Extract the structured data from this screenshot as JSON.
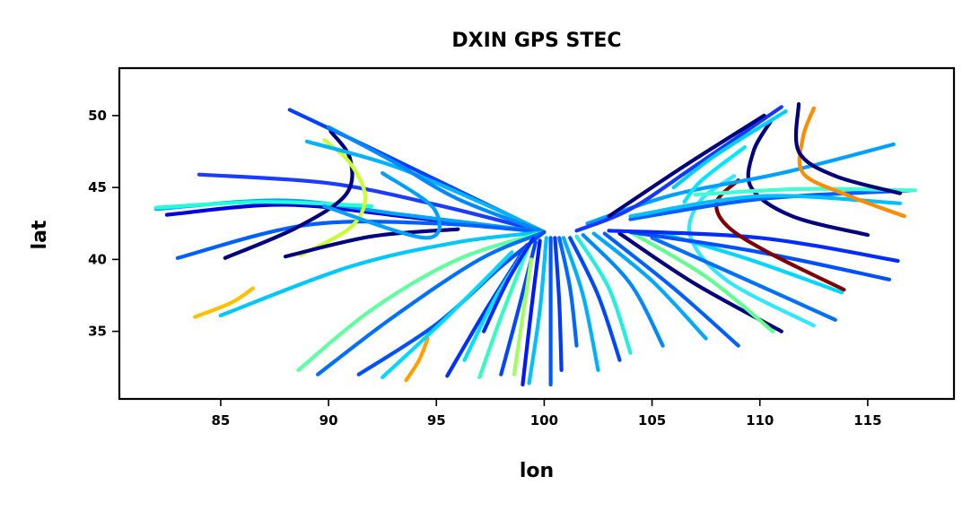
{
  "chart_data": {
    "type": "scatter",
    "title": "DXIN GPS STEC",
    "xlabel": "lon",
    "ylabel": "lat",
    "xlim": [
      80.3,
      119.0
    ],
    "ylim": [
      30.3,
      53.3
    ],
    "xticks": [
      85,
      90,
      95,
      100,
      105,
      110,
      115
    ],
    "yticks": [
      35,
      40,
      45,
      50
    ],
    "grid": false,
    "legend": "none",
    "colormap": "jet",
    "series": [
      {
        "color": "#0000e0",
        "points": [
          [
            82.5,
            43.1
          ],
          [
            88,
            43.8
          ],
          [
            94,
            42.9
          ],
          [
            100,
            41.9
          ]
        ]
      },
      {
        "color": "#1a3cff",
        "points": [
          [
            84,
            45.9
          ],
          [
            90,
            45.3
          ],
          [
            95,
            43.8
          ],
          [
            100,
            41.9
          ]
        ]
      },
      {
        "color": "#00a4ff",
        "points": [
          [
            82,
            43.5
          ],
          [
            88,
            44.1
          ],
          [
            93.5,
            43.1
          ],
          [
            100,
            41.9
          ]
        ]
      },
      {
        "color": "#22ffd5",
        "points": [
          [
            82,
            43.6
          ],
          [
            87,
            44.0
          ],
          [
            92,
            43.7
          ]
        ]
      },
      {
        "color": "#0060ff",
        "points": [
          [
            83,
            40.1
          ],
          [
            89,
            42.4
          ],
          [
            95,
            42.5
          ],
          [
            100,
            41.9
          ]
        ]
      },
      {
        "color": "#00c8ff",
        "points": [
          [
            85,
            36.1
          ],
          [
            91,
            39.5
          ],
          [
            96,
            41.2
          ],
          [
            100,
            41.9
          ]
        ]
      },
      {
        "color": "#ffc000",
        "points": [
          [
            83.8,
            36.0
          ],
          [
            85.5,
            37.0
          ],
          [
            86.5,
            38.0
          ]
        ]
      },
      {
        "color": "#000080",
        "points": [
          [
            85.2,
            40.1
          ],
          [
            88.5,
            42.2
          ],
          [
            90.8,
            44.5
          ],
          [
            91.0,
            47.0
          ],
          [
            90.1,
            48.9
          ]
        ]
      },
      {
        "color": "#c8ff30",
        "points": [
          [
            88.7,
            40.3
          ],
          [
            91.0,
            42.2
          ],
          [
            91.7,
            44.3
          ],
          [
            91.0,
            46.7
          ],
          [
            89.8,
            48.3
          ]
        ]
      },
      {
        "color": "#000080",
        "points": [
          [
            88,
            40.2
          ],
          [
            92,
            41.6
          ],
          [
            96,
            42.1
          ]
        ]
      },
      {
        "color": "#0040ff",
        "points": [
          [
            88.2,
            50.4
          ],
          [
            92,
            47.7
          ],
          [
            96,
            44.8
          ],
          [
            100,
            41.9
          ]
        ]
      },
      {
        "color": "#00b4ff",
        "points": [
          [
            89,
            48.2
          ],
          [
            93,
            46.5
          ],
          [
            97,
            44.0
          ],
          [
            100,
            41.9
          ]
        ]
      },
      {
        "color": "#0088ff",
        "points": [
          [
            90,
            49.2
          ],
          [
            93,
            46.8
          ],
          [
            96,
            44.2
          ],
          [
            100,
            41.9
          ]
        ]
      },
      {
        "color": "#60ffa0",
        "points": [
          [
            88.6,
            32.3
          ],
          [
            92,
            36.5
          ],
          [
            96,
            40.0
          ],
          [
            100,
            41.9
          ]
        ]
      },
      {
        "color": "#0070ff",
        "points": [
          [
            89.5,
            32.0
          ],
          [
            93,
            36.0
          ],
          [
            97,
            40.0
          ],
          [
            100,
            41.9
          ]
        ]
      },
      {
        "color": "#0050ff",
        "points": [
          [
            91.4,
            32.0
          ],
          [
            95,
            35.5
          ],
          [
            98,
            39.5
          ],
          [
            100,
            41.9
          ]
        ]
      },
      {
        "color": "#ffa000",
        "points": [
          [
            93.6,
            31.6
          ],
          [
            94.2,
            33.0
          ],
          [
            94.6,
            34.5
          ]
        ]
      },
      {
        "color": "#00d8ff",
        "points": [
          [
            92.5,
            31.8
          ],
          [
            95.5,
            36.0
          ],
          [
            98.5,
            40.5
          ]
        ]
      },
      {
        "color": "#00a0ff",
        "points": [
          [
            89.8,
            43.7
          ],
          [
            94.5,
            41.5
          ],
          [
            94.9,
            43.5
          ],
          [
            92.5,
            46.0
          ]
        ]
      },
      {
        "color": "#0030ff",
        "points": [
          [
            95.5,
            31.9
          ],
          [
            97.3,
            36.5
          ],
          [
            99.2,
            41.0
          ]
        ]
      },
      {
        "color": "#30ffc0",
        "points": [
          [
            97.0,
            31.8
          ],
          [
            98.0,
            36.0
          ],
          [
            99.3,
            41.0
          ]
        ]
      },
      {
        "color": "#00e0ff",
        "points": [
          [
            96.3,
            33.0
          ],
          [
            97.8,
            37.5
          ],
          [
            99.5,
            41.5
          ]
        ]
      },
      {
        "color": "#0028ff",
        "points": [
          [
            97.2,
            35.0
          ],
          [
            98.3,
            38.5
          ],
          [
            99.5,
            41.5
          ]
        ]
      },
      {
        "color": "#0048ff",
        "points": [
          [
            98.0,
            32.0
          ],
          [
            98.8,
            36.5
          ],
          [
            99.6,
            41.2
          ]
        ]
      },
      {
        "color": "#a0ff60",
        "points": [
          [
            98.6,
            32.0
          ],
          [
            99.0,
            36.0
          ],
          [
            99.4,
            40.0
          ]
        ]
      },
      {
        "color": "#0018ff",
        "points": [
          [
            99.0,
            31.3
          ],
          [
            99.4,
            36.5
          ],
          [
            99.8,
            41.3
          ]
        ]
      },
      {
        "color": "#00c0ff",
        "points": [
          [
            99.3,
            31.4
          ],
          [
            99.8,
            36.5
          ],
          [
            100.1,
            41.5
          ]
        ]
      },
      {
        "color": "#0058ff",
        "points": [
          [
            100.3,
            31.3
          ],
          [
            100.3,
            36.5
          ],
          [
            100.3,
            41.5
          ]
        ]
      },
      {
        "color": "#0038ff",
        "points": [
          [
            100.8,
            32.3
          ],
          [
            100.7,
            37.0
          ],
          [
            100.5,
            41.5
          ]
        ]
      },
      {
        "color": "#0068ff",
        "points": [
          [
            101.5,
            34.0
          ],
          [
            101.2,
            38.0
          ],
          [
            100.7,
            41.5
          ]
        ]
      },
      {
        "color": "#00b0ff",
        "points": [
          [
            102.5,
            32.3
          ],
          [
            101.8,
            37.5
          ],
          [
            100.9,
            41.5
          ]
        ]
      },
      {
        "color": "#0048ff",
        "points": [
          [
            103.5,
            33.0
          ],
          [
            102.5,
            37.5
          ],
          [
            101.2,
            41.5
          ]
        ]
      },
      {
        "color": "#20f0e0",
        "points": [
          [
            104.0,
            33.5
          ],
          [
            103.0,
            38.0
          ],
          [
            101.5,
            41.6
          ]
        ]
      },
      {
        "color": "#0088ff",
        "points": [
          [
            105.5,
            34.0
          ],
          [
            104.0,
            38.3
          ],
          [
            101.8,
            41.7
          ]
        ]
      },
      {
        "color": "#00a8ff",
        "points": [
          [
            107.5,
            34.5
          ],
          [
            105.0,
            38.5
          ],
          [
            102.3,
            41.8
          ]
        ]
      },
      {
        "color": "#0060ff",
        "points": [
          [
            109.0,
            34.0
          ],
          [
            106.0,
            38.0
          ],
          [
            102.8,
            41.8
          ]
        ]
      },
      {
        "color": "#000080",
        "points": [
          [
            111.0,
            35.0
          ],
          [
            107.0,
            38.3
          ],
          [
            103.5,
            41.8
          ]
        ]
      },
      {
        "color": "#60ff90",
        "points": [
          [
            110.6,
            35.0
          ],
          [
            107.5,
            38.8
          ],
          [
            104.0,
            41.9
          ]
        ]
      },
      {
        "color": "#30e8ff",
        "points": [
          [
            112.5,
            35.4
          ],
          [
            108.5,
            38.5
          ],
          [
            106.8,
            41.5
          ],
          [
            107.2,
            44.0
          ],
          [
            108.8,
            45.8
          ]
        ]
      },
      {
        "color": "#0070ff",
        "points": [
          [
            113.5,
            35.8
          ],
          [
            109.5,
            38.5
          ],
          [
            105.0,
            41.5
          ]
        ]
      },
      {
        "color": "#00d8ff",
        "points": [
          [
            113.8,
            37.7
          ],
          [
            109.5,
            40.0
          ],
          [
            105.5,
            41.8
          ]
        ]
      },
      {
        "color": "#0050ff",
        "points": [
          [
            116,
            38.6
          ],
          [
            110,
            40.5
          ],
          [
            104,
            41.9
          ]
        ]
      },
      {
        "color": "#002cff",
        "points": [
          [
            116.4,
            39.9
          ],
          [
            110,
            41.5
          ],
          [
            103,
            42.0
          ]
        ]
      },
      {
        "color": "#800000",
        "points": [
          [
            113.9,
            37.9
          ],
          [
            110.5,
            40.4
          ],
          [
            108.5,
            42.3
          ],
          [
            108.0,
            44.0
          ],
          [
            109.0,
            45.5
          ]
        ]
      },
      {
        "color": "#000080",
        "points": [
          [
            115,
            41.7
          ],
          [
            111.5,
            43.0
          ],
          [
            109.6,
            45.0
          ],
          [
            109.7,
            47.5
          ],
          [
            110.5,
            49.6
          ]
        ]
      },
      {
        "color": "#0060ff",
        "points": [
          [
            117,
            44.8
          ],
          [
            110,
            44.2
          ],
          [
            104,
            42.8
          ]
        ]
      },
      {
        "color": "#40ffd0",
        "points": [
          [
            117.2,
            44.8
          ],
          [
            112,
            44.9
          ],
          [
            107,
            44.5
          ]
        ]
      },
      {
        "color": "#00c0ff",
        "points": [
          [
            116.5,
            43.9
          ],
          [
            110,
            44.4
          ],
          [
            104,
            43.0
          ]
        ]
      },
      {
        "color": "#00a0ff",
        "points": [
          [
            116.2,
            48.0
          ],
          [
            111,
            46.0
          ],
          [
            106,
            44.5
          ],
          [
            102,
            42.5
          ]
        ]
      },
      {
        "color": "#ff8c00",
        "points": [
          [
            116.7,
            43.0
          ],
          [
            114.0,
            44.5
          ],
          [
            112.0,
            46.0
          ],
          [
            112.0,
            48.5
          ],
          [
            112.5,
            50.5
          ]
        ]
      },
      {
        "color": "#00007a",
        "points": [
          [
            116.5,
            44.6
          ],
          [
            113.5,
            45.8
          ],
          [
            111.8,
            47.5
          ],
          [
            111.8,
            50.8
          ]
        ]
      },
      {
        "color": "#1438ff",
        "points": [
          [
            111.0,
            50.6
          ],
          [
            107,
            46.5
          ],
          [
            104,
            43.5
          ],
          [
            101.5,
            42.0
          ]
        ]
      },
      {
        "color": "#000080",
        "points": [
          [
            110.2,
            50.0
          ],
          [
            106.5,
            46.5
          ],
          [
            103,
            43.0
          ]
        ]
      },
      {
        "color": "#00d0ff",
        "points": [
          [
            111.2,
            50.3
          ],
          [
            108,
            47.3
          ],
          [
            106.0,
            45.0
          ]
        ]
      },
      {
        "color": "#00e8ff",
        "points": [
          [
            109.3,
            47.8
          ],
          [
            107.3,
            45.5
          ],
          [
            106.5,
            44.0
          ]
        ]
      }
    ]
  }
}
